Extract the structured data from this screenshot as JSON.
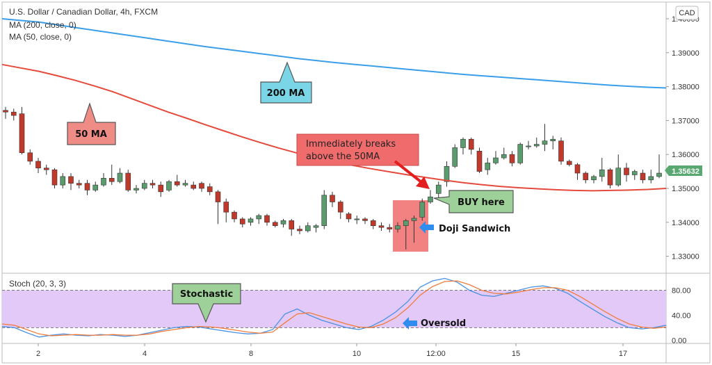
{
  "legend": {
    "title": "U.S. Dollar / Canadian Dollar, 4h, FXCM",
    "ma200": "MA (200, close, 0)",
    "ma50": "MA (50, close, 0)",
    "stoch": "Stoch (20, 3, 3)"
  },
  "currency_button": "CAD",
  "colors": {
    "up": "#5b9c6f",
    "down": "#c0392b",
    "ma200": "#3a9ee8",
    "ma50": "#e54a3c",
    "stoch_k": "#4a90e2",
    "stoch_d": "#f07c3c",
    "stoch_band": "#e3c9f7",
    "price_tag": "#5aa871"
  },
  "annotations": {
    "ma200_label": "200 MA",
    "ma50_label": "50 MA",
    "breaks_note": [
      "Immediately breaks",
      "above the 50MA"
    ],
    "buy_label": "BUY here",
    "doji_label": "Doji Sandwich",
    "stoch_label": "Stochastic",
    "oversold_label": "Oversold"
  },
  "chart_data": [
    {
      "type": "candlestick",
      "title": "U.S. Dollar / Canadian Dollar, 4h, FXCM",
      "x_ticks": [
        "2",
        "4",
        "8",
        "10",
        "12:00",
        "15",
        "17"
      ],
      "ylim": [
        1.325,
        1.4045
      ],
      "y_ticks": [
        "1.40000",
        "1.39000",
        "1.38000",
        "1.37000",
        "1.36000",
        "1.35000",
        "1.34000",
        "1.33000"
      ],
      "last_price": "1.35632",
      "candles": [
        [
          1.373,
          1.3725,
          1.374,
          1.3705
        ],
        [
          1.3725,
          1.3715,
          1.3735,
          1.37
        ],
        [
          1.372,
          1.3605,
          1.374,
          1.36
        ],
        [
          1.3605,
          1.358,
          1.3615,
          1.357
        ],
        [
          1.358,
          1.356,
          1.359,
          1.3545
        ],
        [
          1.356,
          1.3555,
          1.357,
          1.354
        ],
        [
          1.3555,
          1.351,
          1.356,
          1.35
        ],
        [
          1.351,
          1.3535,
          1.3545,
          1.35
        ],
        [
          1.3535,
          1.3515,
          1.3545,
          1.3495
        ],
        [
          1.3515,
          1.351,
          1.3525,
          1.35
        ],
        [
          1.3515,
          1.3495,
          1.3525,
          1.348
        ],
        [
          1.3495,
          1.351,
          1.352,
          1.349
        ],
        [
          1.351,
          1.353,
          1.3545,
          1.3505
        ],
        [
          1.353,
          1.352,
          1.357,
          1.351
        ],
        [
          1.352,
          1.3545,
          1.356,
          1.3515
        ],
        [
          1.3545,
          1.3495,
          1.3555,
          1.349
        ],
        [
          1.3495,
          1.35,
          1.351,
          1.3485
        ],
        [
          1.35,
          1.3515,
          1.3525,
          1.3495
        ],
        [
          1.3515,
          1.351,
          1.3525,
          1.35
        ],
        [
          1.351,
          1.349,
          1.352,
          1.3475
        ],
        [
          1.3495,
          1.352,
          1.3525,
          1.349
        ],
        [
          1.352,
          1.351,
          1.354,
          1.3505
        ],
        [
          1.351,
          1.3515,
          1.3525,
          1.3505
        ],
        [
          1.351,
          1.35,
          1.352,
          1.3495
        ],
        [
          1.3515,
          1.35,
          1.352,
          1.349
        ],
        [
          1.3505,
          1.349,
          1.3515,
          1.348
        ],
        [
          1.349,
          1.346,
          1.3495,
          1.3395
        ],
        [
          1.346,
          1.343,
          1.347,
          1.34
        ],
        [
          1.343,
          1.341,
          1.3435,
          1.34
        ],
        [
          1.341,
          1.3395,
          1.3415,
          1.3385
        ],
        [
          1.34,
          1.341,
          1.3415,
          1.339
        ],
        [
          1.341,
          1.342,
          1.3425,
          1.3395
        ],
        [
          1.342,
          1.34,
          1.3425,
          1.339
        ],
        [
          1.34,
          1.339,
          1.3405,
          1.3385
        ],
        [
          1.3395,
          1.3405,
          1.341,
          1.3385
        ],
        [
          1.3405,
          1.338,
          1.341,
          1.336
        ],
        [
          1.338,
          1.3375,
          1.339,
          1.3365
        ],
        [
          1.3375,
          1.339,
          1.34,
          1.337
        ],
        [
          1.3385,
          1.339,
          1.3395,
          1.337
        ],
        [
          1.339,
          1.348,
          1.3495,
          1.338
        ],
        [
          1.348,
          1.346,
          1.349,
          1.3445
        ],
        [
          1.346,
          1.343,
          1.3465,
          1.341
        ],
        [
          1.3425,
          1.341,
          1.343,
          1.34
        ],
        [
          1.341,
          1.341,
          1.342,
          1.3395
        ],
        [
          1.341,
          1.3405,
          1.3415,
          1.3395
        ],
        [
          1.3405,
          1.339,
          1.341,
          1.338
        ],
        [
          1.339,
          1.3385,
          1.34,
          1.3375
        ],
        [
          1.3385,
          1.338,
          1.3395,
          1.337
        ],
        [
          1.338,
          1.339,
          1.34,
          1.337
        ],
        [
          1.339,
          1.3405,
          1.341,
          1.332
        ],
        [
          1.3405,
          1.3412,
          1.342,
          1.334
        ],
        [
          1.3415,
          1.346,
          1.347,
          1.3405
        ],
        [
          1.346,
          1.3475,
          1.3495,
          1.3455
        ],
        [
          1.3485,
          1.351,
          1.352,
          1.347
        ],
        [
          1.352,
          1.3565,
          1.358,
          1.3505
        ],
        [
          1.3565,
          1.362,
          1.363,
          1.356
        ],
        [
          1.362,
          1.3645,
          1.365,
          1.36
        ],
        [
          1.3645,
          1.3615,
          1.365,
          1.36
        ],
        [
          1.361,
          1.355,
          1.362,
          1.3545
        ],
        [
          1.3555,
          1.3575,
          1.359,
          1.354
        ],
        [
          1.3575,
          1.359,
          1.361,
          1.357
        ],
        [
          1.359,
          1.36,
          1.362,
          1.3585
        ],
        [
          1.36,
          1.3575,
          1.361,
          1.3565
        ],
        [
          1.3575,
          1.363,
          1.3635,
          1.357
        ],
        [
          1.3625,
          1.3625,
          1.364,
          1.3615
        ],
        [
          1.3625,
          1.363,
          1.365,
          1.362
        ],
        [
          1.363,
          1.364,
          1.369,
          1.361
        ],
        [
          1.364,
          1.3645,
          1.3655,
          1.3615
        ],
        [
          1.364,
          1.358,
          1.365,
          1.357
        ],
        [
          1.358,
          1.357,
          1.3585,
          1.3565
        ],
        [
          1.357,
          1.3545,
          1.3575,
          1.3525
        ],
        [
          1.3545,
          1.3525,
          1.355,
          1.3515
        ],
        [
          1.3525,
          1.3535,
          1.354,
          1.3515
        ],
        [
          1.3535,
          1.3555,
          1.359,
          1.352
        ],
        [
          1.3555,
          1.351,
          1.356,
          1.35
        ],
        [
          1.351,
          1.356,
          1.36,
          1.3505
        ],
        [
          1.356,
          1.354,
          1.3575,
          1.352
        ],
        [
          1.354,
          1.355,
          1.3555,
          1.3525
        ],
        [
          1.3545,
          1.3525,
          1.3555,
          1.3515
        ],
        [
          1.3525,
          1.3535,
          1.3555,
          1.3515
        ],
        [
          1.3535,
          1.3545,
          1.36,
          1.353
        ]
      ],
      "series": [
        {
          "name": "MA (200, close, 0)",
          "values": [
            1.4,
            1.3995,
            1.399,
            1.3982,
            1.3974,
            1.3966,
            1.3958,
            1.395,
            1.3942,
            1.3934,
            1.3926,
            1.3918,
            1.3911,
            1.3904,
            1.3897,
            1.389,
            1.3883,
            1.3877,
            1.3871,
            1.3866,
            1.3861,
            1.3856,
            1.3851,
            1.3846,
            1.3841,
            1.3836,
            1.3832,
            1.3828,
            1.3824,
            1.382,
            1.3816,
            1.3812,
            1.3808,
            1.3804,
            1.3801,
            1.3798,
            1.3796
          ]
        },
        {
          "name": "MA (50, close, 0)",
          "values": [
            1.3865,
            1.3855,
            1.3845,
            1.3832,
            1.3818,
            1.3802,
            1.3785,
            1.3765,
            1.3745,
            1.3725,
            1.3707,
            1.3688,
            1.367,
            1.3652,
            1.3635,
            1.3619,
            1.3604,
            1.3591,
            1.3579,
            1.3568,
            1.3558,
            1.3549,
            1.354,
            1.3532,
            1.3524,
            1.3517,
            1.3511,
            1.3506,
            1.3502,
            1.3499,
            1.3496,
            1.3494,
            1.3493,
            1.3494,
            1.3495,
            1.3497,
            1.35
          ]
        }
      ]
    },
    {
      "type": "line",
      "title": "Stoch (20, 3, 3)",
      "ylim": [
        -3,
        105
      ],
      "y_ticks": [
        "80.00",
        "40.00",
        "0.00"
      ],
      "band": [
        20,
        80
      ],
      "series": [
        {
          "name": "%K",
          "values": [
            22,
            20,
            12,
            5,
            8,
            10,
            8,
            7,
            9,
            8,
            6,
            8,
            12,
            16,
            20,
            22,
            21,
            18,
            15,
            12,
            10,
            11,
            17,
            42,
            50,
            40,
            32,
            26,
            20,
            17,
            22,
            32,
            45,
            62,
            85,
            95,
            99,
            93,
            80,
            72,
            70,
            75,
            80,
            85,
            87,
            83,
            75,
            62,
            50,
            38,
            28,
            20,
            18,
            20,
            24
          ]
        },
        {
          "name": "%D",
          "values": [
            26,
            24,
            17,
            10,
            7,
            8,
            9,
            8,
            8,
            9,
            8,
            8,
            10,
            14,
            17,
            20,
            22,
            21,
            19,
            16,
            13,
            11,
            13,
            28,
            42,
            44,
            38,
            32,
            26,
            21,
            20,
            26,
            36,
            52,
            72,
            86,
            94,
            95,
            89,
            80,
            75,
            74,
            77,
            81,
            84,
            84,
            80,
            70,
            58,
            46,
            35,
            26,
            21,
            19,
            21
          ]
        }
      ]
    }
  ]
}
